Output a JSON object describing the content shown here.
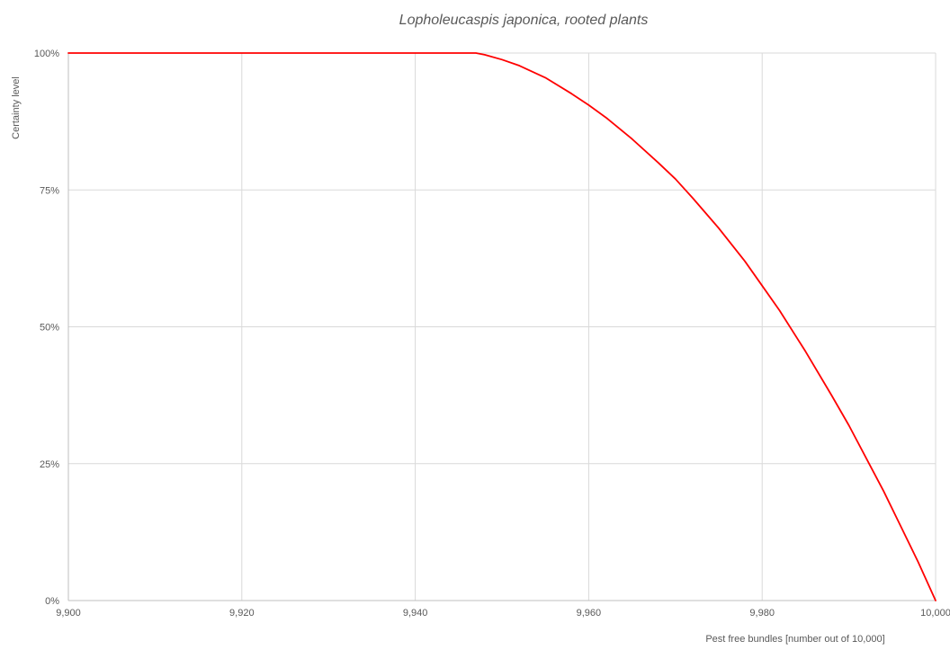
{
  "chart_data": {
    "type": "line",
    "title": "Lopholeucaspis japonica, rooted plants",
    "xlabel": "Pest free bundles [number out of 10,000]",
    "ylabel": "Certainty level",
    "xlim": [
      9900,
      10000
    ],
    "ylim": [
      0,
      1
    ],
    "x_ticks": [
      9900,
      9920,
      9940,
      9960,
      9980,
      10000
    ],
    "x_tick_labels": [
      "9,900",
      "9,920",
      "9,940",
      "9,960",
      "9,980",
      "10,000"
    ],
    "y_ticks": [
      0,
      0.25,
      0.5,
      0.75,
      1
    ],
    "y_tick_labels": [
      "0%",
      "25%",
      "50%",
      "75%",
      "100%"
    ],
    "grid": true,
    "legend": "none",
    "series": [
      {
        "color": "#ff0000",
        "x": [
          9900,
          9910,
          9920,
          9930,
          9940,
          9945,
          9947,
          9948,
          9950,
          9952,
          9955,
          9958,
          9960,
          9962,
          9965,
          9968,
          9970,
          9972,
          9975,
          9978,
          9980,
          9982,
          9985,
          9988,
          9990,
          9992,
          9994,
          9996,
          9998,
          10000
        ],
        "y": [
          1,
          1,
          1,
          1,
          1,
          1,
          1,
          0.997,
          0.988,
          0.977,
          0.955,
          0.926,
          0.905,
          0.882,
          0.843,
          0.8,
          0.77,
          0.735,
          0.68,
          0.62,
          0.575,
          0.53,
          0.455,
          0.375,
          0.32,
          0.26,
          0.2,
          0.135,
          0.07,
          0
        ]
      }
    ]
  }
}
